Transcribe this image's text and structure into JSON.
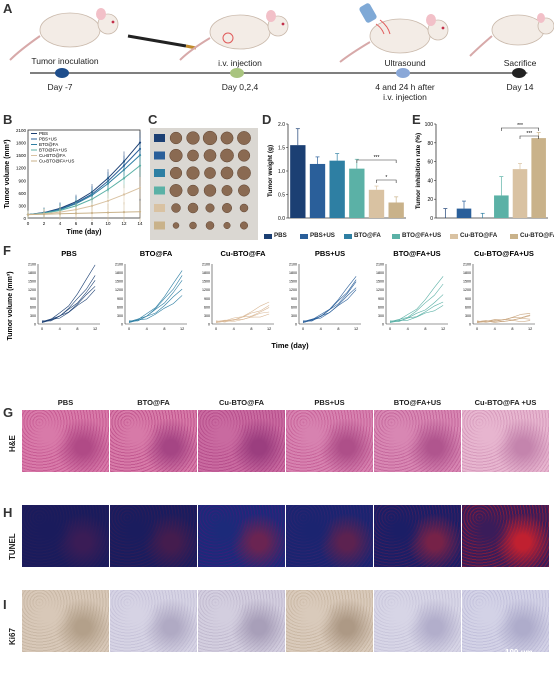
{
  "panel_letters": [
    "A",
    "B",
    "C",
    "D",
    "E",
    "F",
    "G",
    "H",
    "I"
  ],
  "timeline": {
    "events": [
      {
        "label": "Tumor  inoculation",
        "day": "Day -7"
      },
      {
        "label": "i.v. injection",
        "day": "Day 0,2,4"
      },
      {
        "label": "Ultrasound",
        "day": "4 and 24 h after\ni.v. injection"
      },
      {
        "label": "Sacrifice",
        "day": "Day 14"
      }
    ],
    "colors": [
      "#1f4e8c",
      "#a9c47f",
      "#8aa8d8",
      "#222222"
    ]
  },
  "groups": [
    "PBS",
    "PBS+US",
    "BTO@FA",
    "BTO@FA+US",
    "Cu-BTO@FA",
    "Cu-BTO@FA+US"
  ],
  "group_colors": [
    "#1b3f73",
    "#2a5f9a",
    "#2e7fa3",
    "#5bb1a6",
    "#d9c2a2",
    "#c9b28a"
  ],
  "chart_data": [
    {
      "type": "line",
      "panel": "B",
      "xlabel": "Time (day)",
      "ylabel": "Tumor volume (mm³)",
      "x": [
        0,
        2,
        4,
        6,
        8,
        10,
        12,
        14
      ],
      "xticks": [
        "0",
        "2",
        "4",
        "6",
        "8",
        "10",
        "12",
        "14"
      ],
      "yticks": [
        "0",
        "300",
        "600",
        "900",
        "1200",
        "1500",
        "1800",
        "2100"
      ],
      "ylim": [
        0,
        2100
      ],
      "legend": [
        "PBS",
        "PBS+US",
        "BTO@FA",
        "BTO@FA+US",
        "Cu-BTO@FA",
        "Cu-BTO@FA+US"
      ],
      "legend_colors": [
        "#1b3f73",
        "#2a5f9a",
        "#2e7fa3",
        "#5bb1a6",
        "#d9c2a2",
        "#c9b28a"
      ],
      "series": [
        {
          "values": [
            80,
            130,
            230,
            390,
            620,
            950,
            1350,
            1800
          ]
        },
        {
          "values": [
            80,
            125,
            210,
            360,
            570,
            880,
            1250,
            1650
          ]
        },
        {
          "values": [
            80,
            120,
            200,
            340,
            540,
            820,
            1150,
            1500
          ]
        },
        {
          "values": [
            80,
            115,
            180,
            290,
            450,
            680,
            950,
            1250
          ]
        },
        {
          "values": [
            80,
            100,
            140,
            200,
            290,
            410,
            560,
            720
          ]
        },
        {
          "values": [
            80,
            90,
            100,
            110,
            120,
            130,
            140,
            150
          ]
        }
      ]
    },
    {
      "type": "bar",
      "panel": "D",
      "ylabel": "Tumor weight (g)",
      "categories": [
        "PBS",
        "PBS+US",
        "BTO@FA",
        "BTO@FA+US",
        "Cu-BTO@FA",
        "Cu-BTO@FA+US"
      ],
      "values": [
        1.55,
        1.15,
        1.22,
        1.05,
        0.6,
        0.33
      ],
      "errors": [
        0.35,
        0.15,
        0.15,
        0.2,
        0.08,
        0.12
      ],
      "yticks": [
        "0.0",
        "0.5",
        "1.0",
        "1.5",
        "2.0"
      ],
      "ylim": [
        0,
        2.0
      ],
      "significance": [
        "***",
        "*"
      ]
    },
    {
      "type": "bar",
      "panel": "E",
      "ylabel": "Tumor inhibition rate (%)",
      "categories": [
        "PBS",
        "PBS+US",
        "BTO@FA",
        "BTO@FA+US",
        "Cu-BTO@FA",
        "Cu-BTO@FA+US"
      ],
      "values": [
        0,
        10,
        0,
        24,
        52,
        85
      ],
      "errors": [
        10,
        8,
        5,
        20,
        6,
        6
      ],
      "yticks": [
        "0",
        "20",
        "40",
        "60",
        "80",
        "100"
      ],
      "ylim": [
        0,
        100
      ],
      "significance": [
        "***",
        "***"
      ]
    },
    {
      "type": "line",
      "panel": "F",
      "xlabel": "Time (day)",
      "ylabel": "Tumor volume (mm³)",
      "xticks": [
        "0",
        "4",
        "8",
        "12"
      ],
      "yticks": [
        "0",
        "300",
        "600",
        "900",
        "1200",
        "1500",
        "1800",
        "2100"
      ],
      "ylim": [
        0,
        2100
      ],
      "x": [
        0,
        2,
        4,
        6,
        8,
        10,
        12
      ],
      "titles": [
        "PBS",
        "BTO@FA",
        "Cu-BTO@FA",
        "PBS+US",
        "BTO@FA+US",
        "Cu-BTO@FA+US"
      ],
      "colors": [
        "#1b3f73",
        "#2e7fa3",
        "#d9b896",
        "#2a5f9a",
        "#5bb1a6",
        "#c9a57e"
      ],
      "maxes": [
        [
          2100,
          1700,
          1500,
          1350,
          1200
        ],
        [
          1900,
          1700,
          1500,
          1250,
          1000
        ],
        [
          800,
          650,
          550,
          450,
          350
        ],
        [
          1700,
          1550,
          1450,
          1300,
          1200
        ],
        [
          1700,
          1400,
          1000,
          800,
          650
        ],
        [
          400,
          320,
          260,
          200,
          120
        ]
      ]
    }
  ],
  "histology": {
    "column_titles": [
      "PBS",
      "BTO@FA",
      "Cu-BTO@FA",
      "PBS+US",
      "BTO@FA+US",
      "Cu-BTO@FA +US"
    ],
    "rows": [
      {
        "label": "H&E"
      },
      {
        "label": "TUNEL"
      },
      {
        "label": "Ki67"
      }
    ],
    "scale_label": "100 μm"
  }
}
